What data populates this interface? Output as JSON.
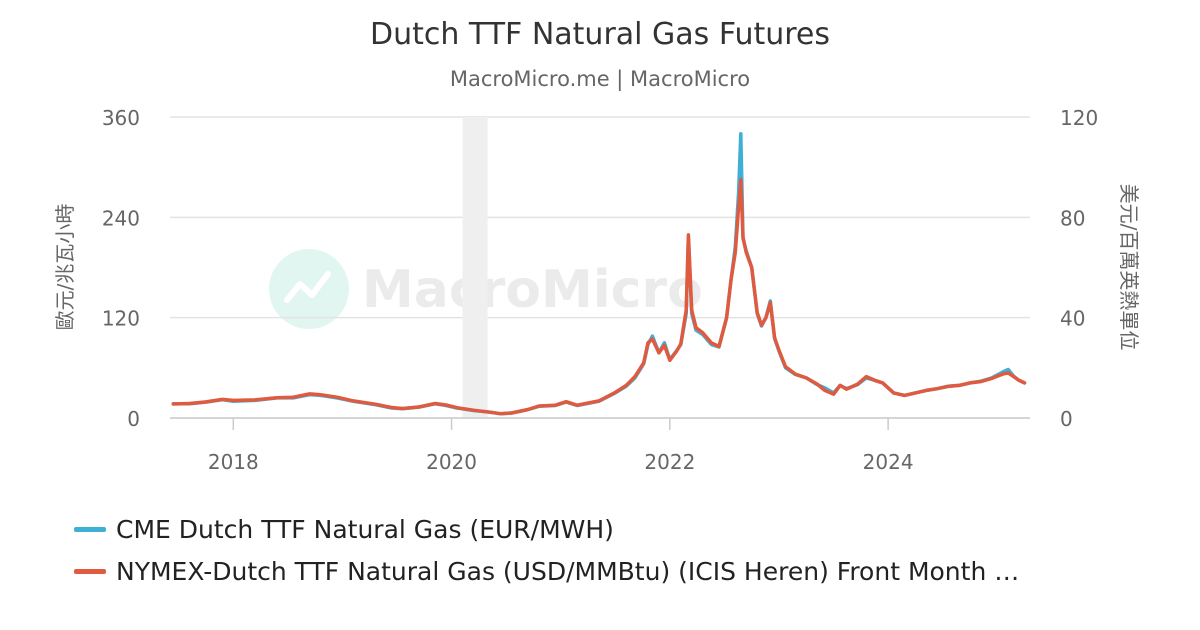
{
  "chart_data": {
    "type": "line",
    "title": "Dutch TTF Natural Gas Futures",
    "subtitle": "MacroMicro.me | MacroMicro",
    "watermark": "MacroMicro",
    "ylabel_left": "歐元/兆瓦小時",
    "ylabel_right": "美元/百萬英熱單位",
    "ylim_left": [
      0,
      360
    ],
    "ylim_right": [
      0,
      120
    ],
    "yticks_left": [
      "360",
      "240",
      "120",
      "0"
    ],
    "yticks_right": [
      "120",
      "80",
      "40",
      "0"
    ],
    "xlim": [
      2017.42,
      2025.3
    ],
    "xticks": [
      "2018",
      "2020",
      "2022",
      "2024"
    ],
    "grid": true,
    "shaded_region": [
      2020.1,
      2020.33
    ],
    "legend_position": "bottom-left",
    "series": [
      {
        "name": "CME Dutch TTF Natural Gas (EUR/MWH)",
        "color": "#3fafd6",
        "axis": "left",
        "points": [
          [
            2017.45,
            17
          ],
          [
            2017.6,
            17
          ],
          [
            2017.75,
            19
          ],
          [
            2017.9,
            22
          ],
          [
            2018.0,
            20
          ],
          [
            2018.2,
            21
          ],
          [
            2018.4,
            24
          ],
          [
            2018.55,
            24
          ],
          [
            2018.7,
            28
          ],
          [
            2018.8,
            27
          ],
          [
            2018.95,
            24
          ],
          [
            2019.1,
            20
          ],
          [
            2019.3,
            16
          ],
          [
            2019.45,
            12
          ],
          [
            2019.55,
            11
          ],
          [
            2019.7,
            13
          ],
          [
            2019.85,
            17
          ],
          [
            2019.95,
            15
          ],
          [
            2020.05,
            12
          ],
          [
            2020.2,
            9
          ],
          [
            2020.35,
            7
          ],
          [
            2020.45,
            5
          ],
          [
            2020.55,
            6
          ],
          [
            2020.7,
            10
          ],
          [
            2020.8,
            14
          ],
          [
            2020.95,
            15
          ],
          [
            2021.05,
            19
          ],
          [
            2021.15,
            15
          ],
          [
            2021.35,
            20
          ],
          [
            2021.5,
            30
          ],
          [
            2021.6,
            38
          ],
          [
            2021.68,
            48
          ],
          [
            2021.76,
            65
          ],
          [
            2021.8,
            88
          ],
          [
            2021.84,
            98
          ],
          [
            2021.9,
            78
          ],
          [
            2021.95,
            90
          ],
          [
            2022.0,
            70
          ],
          [
            2022.06,
            80
          ],
          [
            2022.1,
            88
          ],
          [
            2022.15,
            125
          ],
          [
            2022.17,
            215
          ],
          [
            2022.2,
            125
          ],
          [
            2022.24,
            105
          ],
          [
            2022.3,
            100
          ],
          [
            2022.38,
            88
          ],
          [
            2022.45,
            85
          ],
          [
            2022.52,
            120
          ],
          [
            2022.56,
            165
          ],
          [
            2022.6,
            205
          ],
          [
            2022.63,
            270
          ],
          [
            2022.65,
            340
          ],
          [
            2022.67,
            215
          ],
          [
            2022.7,
            200
          ],
          [
            2022.75,
            180
          ],
          [
            2022.8,
            125
          ],
          [
            2022.84,
            110
          ],
          [
            2022.88,
            120
          ],
          [
            2022.92,
            140
          ],
          [
            2022.96,
            95
          ],
          [
            2023.0,
            80
          ],
          [
            2023.06,
            60
          ],
          [
            2023.15,
            52
          ],
          [
            2023.25,
            48
          ],
          [
            2023.35,
            40
          ],
          [
            2023.42,
            36
          ],
          [
            2023.5,
            30
          ],
          [
            2023.56,
            39
          ],
          [
            2023.62,
            35
          ],
          [
            2023.72,
            40
          ],
          [
            2023.8,
            48
          ],
          [
            2023.88,
            45
          ],
          [
            2023.95,
            42
          ],
          [
            2024.05,
            30
          ],
          [
            2024.15,
            27
          ],
          [
            2024.25,
            30
          ],
          [
            2024.35,
            33
          ],
          [
            2024.45,
            35
          ],
          [
            2024.55,
            38
          ],
          [
            2024.65,
            39
          ],
          [
            2024.75,
            42
          ],
          [
            2024.85,
            44
          ],
          [
            2024.95,
            48
          ],
          [
            2025.05,
            55
          ],
          [
            2025.1,
            58
          ],
          [
            2025.15,
            50
          ],
          [
            2025.2,
            45
          ],
          [
            2025.25,
            42
          ]
        ]
      },
      {
        "name": "NYMEX-Dutch TTF Natural Gas (USD/MMBtu) (ICIS Heren) Front Month …",
        "color": "#e05a3f",
        "axis": "right",
        "points": [
          [
            2017.45,
            5.6
          ],
          [
            2017.6,
            5.8
          ],
          [
            2017.75,
            6.4
          ],
          [
            2017.9,
            7.4
          ],
          [
            2018.0,
            7.0
          ],
          [
            2018.2,
            7.2
          ],
          [
            2018.4,
            8.1
          ],
          [
            2018.55,
            8.3
          ],
          [
            2018.7,
            9.6
          ],
          [
            2018.8,
            9.3
          ],
          [
            2018.95,
            8.3
          ],
          [
            2019.1,
            6.8
          ],
          [
            2019.3,
            5.5
          ],
          [
            2019.45,
            4.2
          ],
          [
            2019.55,
            3.8
          ],
          [
            2019.7,
            4.4
          ],
          [
            2019.85,
            5.8
          ],
          [
            2019.95,
            5.2
          ],
          [
            2020.05,
            4.1
          ],
          [
            2020.2,
            3.1
          ],
          [
            2020.35,
            2.3
          ],
          [
            2020.45,
            1.7
          ],
          [
            2020.55,
            2.0
          ],
          [
            2020.7,
            3.4
          ],
          [
            2020.8,
            4.8
          ],
          [
            2020.95,
            5.1
          ],
          [
            2021.05,
            6.5
          ],
          [
            2021.15,
            5.1
          ],
          [
            2021.35,
            6.8
          ],
          [
            2021.5,
            10.2
          ],
          [
            2021.6,
            13.0
          ],
          [
            2021.68,
            16.5
          ],
          [
            2021.76,
            22.0
          ],
          [
            2021.8,
            30.0
          ],
          [
            2021.84,
            31.5
          ],
          [
            2021.9,
            26.0
          ],
          [
            2021.95,
            29.0
          ],
          [
            2022.0,
            23.0
          ],
          [
            2022.06,
            26.5
          ],
          [
            2022.1,
            29.5
          ],
          [
            2022.15,
            43.0
          ],
          [
            2022.17,
            73.0
          ],
          [
            2022.2,
            43.0
          ],
          [
            2022.24,
            36.0
          ],
          [
            2022.3,
            34.0
          ],
          [
            2022.38,
            30.0
          ],
          [
            2022.45,
            28.5
          ],
          [
            2022.52,
            40.0
          ],
          [
            2022.56,
            55.0
          ],
          [
            2022.6,
            66.0
          ],
          [
            2022.63,
            84.0
          ],
          [
            2022.65,
            95.0
          ],
          [
            2022.67,
            72.0
          ],
          [
            2022.7,
            66.0
          ],
          [
            2022.75,
            60.0
          ],
          [
            2022.8,
            42.0
          ],
          [
            2022.84,
            37.0
          ],
          [
            2022.88,
            40.0
          ],
          [
            2022.92,
            46.0
          ],
          [
            2022.96,
            32.0
          ],
          [
            2023.0,
            27.0
          ],
          [
            2023.06,
            20.5
          ],
          [
            2023.15,
            17.5
          ],
          [
            2023.25,
            16.0
          ],
          [
            2023.35,
            13.5
          ],
          [
            2023.42,
            11.0
          ],
          [
            2023.5,
            9.5
          ],
          [
            2023.56,
            13.0
          ],
          [
            2023.62,
            11.5
          ],
          [
            2023.72,
            13.5
          ],
          [
            2023.8,
            16.5
          ],
          [
            2023.88,
            15.0
          ],
          [
            2023.95,
            14.0
          ],
          [
            2024.05,
            10.0
          ],
          [
            2024.15,
            9.0
          ],
          [
            2024.25,
            10.0
          ],
          [
            2024.35,
            11.0
          ],
          [
            2024.45,
            11.7
          ],
          [
            2024.55,
            12.6
          ],
          [
            2024.65,
            13.0
          ],
          [
            2024.75,
            14.0
          ],
          [
            2024.85,
            14.5
          ],
          [
            2024.95,
            15.8
          ],
          [
            2025.05,
            17.5
          ],
          [
            2025.1,
            18.0
          ],
          [
            2025.15,
            16.5
          ],
          [
            2025.2,
            15.0
          ],
          [
            2025.25,
            14.0
          ]
        ]
      }
    ]
  }
}
